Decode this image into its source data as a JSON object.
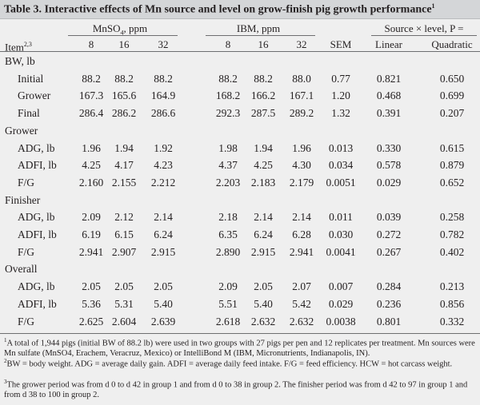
{
  "title": {
    "text": "Table 3. Interactive effects of Mn source and level on grow-finish pig growth performance",
    "sup": "1"
  },
  "header": {
    "group_mnso4_label": "MnSO",
    "group_mnso4_sub": "4",
    "group_mnso4_unit": ", ppm",
    "group_ibm": "IBM, ppm",
    "group_p": "Source × level, P =",
    "item_label": "Item",
    "item_sup": "2,3",
    "levels": [
      "8",
      "16",
      "32",
      "8",
      "16",
      "32"
    ],
    "sem": "SEM",
    "linear": "Linear",
    "quadratic": "Quadratic"
  },
  "rows": [
    {
      "type": "section",
      "label": "BW, lb"
    },
    {
      "type": "data",
      "label": "Initial",
      "values": [
        "88.2",
        "88.2",
        "88.2",
        "88.2",
        "88.2",
        "88.0",
        "0.77",
        "0.821",
        "0.650"
      ]
    },
    {
      "type": "data",
      "label": "Grower",
      "values": [
        "167.3",
        "165.6",
        "164.9",
        "168.2",
        "166.2",
        "167.1",
        "1.20",
        "0.468",
        "0.699"
      ]
    },
    {
      "type": "data",
      "label": "Final",
      "values": [
        "286.4",
        "286.2",
        "286.6",
        "292.3",
        "287.5",
        "289.2",
        "1.32",
        "0.391",
        "0.207"
      ]
    },
    {
      "type": "section",
      "label": "Grower"
    },
    {
      "type": "data",
      "label": "ADG, lb",
      "values": [
        "1.96",
        "1.94",
        "1.92",
        "1.98",
        "1.94",
        "1.96",
        "0.013",
        "0.330",
        "0.615"
      ]
    },
    {
      "type": "data",
      "label": "ADFI, lb",
      "values": [
        "4.25",
        "4.17",
        "4.23",
        "4.37",
        "4.25",
        "4.30",
        "0.034",
        "0.578",
        "0.879"
      ]
    },
    {
      "type": "data",
      "label": "F/G",
      "values": [
        "2.160",
        "2.155",
        "2.212",
        "2.203",
        "2.183",
        "2.179",
        "0.0051",
        "0.029",
        "0.652"
      ]
    },
    {
      "type": "section",
      "label": "Finisher"
    },
    {
      "type": "data",
      "label": "ADG, lb",
      "values": [
        "2.09",
        "2.12",
        "2.14",
        "2.18",
        "2.14",
        "2.14",
        "0.011",
        "0.039",
        "0.258"
      ]
    },
    {
      "type": "data",
      "label": "ADFI, lb",
      "values": [
        "6.19",
        "6.15",
        "6.24",
        "6.35",
        "6.24",
        "6.28",
        "0.030",
        "0.272",
        "0.782"
      ]
    },
    {
      "type": "data",
      "label": "F/G",
      "values": [
        "2.941",
        "2.907",
        "2.915",
        "2.890",
        "2.915",
        "2.941",
        "0.0041",
        "0.267",
        "0.402"
      ]
    },
    {
      "type": "section",
      "label": "Overall"
    },
    {
      "type": "data",
      "label": "ADG, lb",
      "values": [
        "2.05",
        "2.05",
        "2.05",
        "2.09",
        "2.05",
        "2.07",
        "0.007",
        "0.284",
        "0.213"
      ]
    },
    {
      "type": "data",
      "label": "ADFI, lb",
      "values": [
        "5.36",
        "5.31",
        "5.40",
        "5.51",
        "5.40",
        "5.42",
        "0.029",
        "0.236",
        "0.856"
      ]
    },
    {
      "type": "data",
      "label": "F/G",
      "values": [
        "2.625",
        "2.604",
        "2.639",
        "2.618",
        "2.632",
        "2.632",
        "0.0038",
        "0.801",
        "0.332"
      ]
    }
  ],
  "footnotes": [
    {
      "sup": "1",
      "text": "A total of 1,944 pigs (initial BW of 88.2 lb) were used in two groups with 27 pigs per pen and 12 replicates per treatment. Mn sources were Mn sulfate (MnSO4, Erachem, Veracruz, Mexico) or IntelliBond M (IBM, Micronutrients, Indianapolis, IN)."
    },
    {
      "sup": "2",
      "text": "BW = body weight. ADG = average daily gain. ADFI = average daily feed intake. F/G = feed efficiency. HCW = hot carcass weight."
    },
    {
      "sup": "3",
      "text": "The grower period was from d 0 to d 42 in group 1 and from d 0 to 38 in group 2. The finisher period was from d 42 to 97 in group 1 and from d 38 to 100 in group 2."
    }
  ]
}
